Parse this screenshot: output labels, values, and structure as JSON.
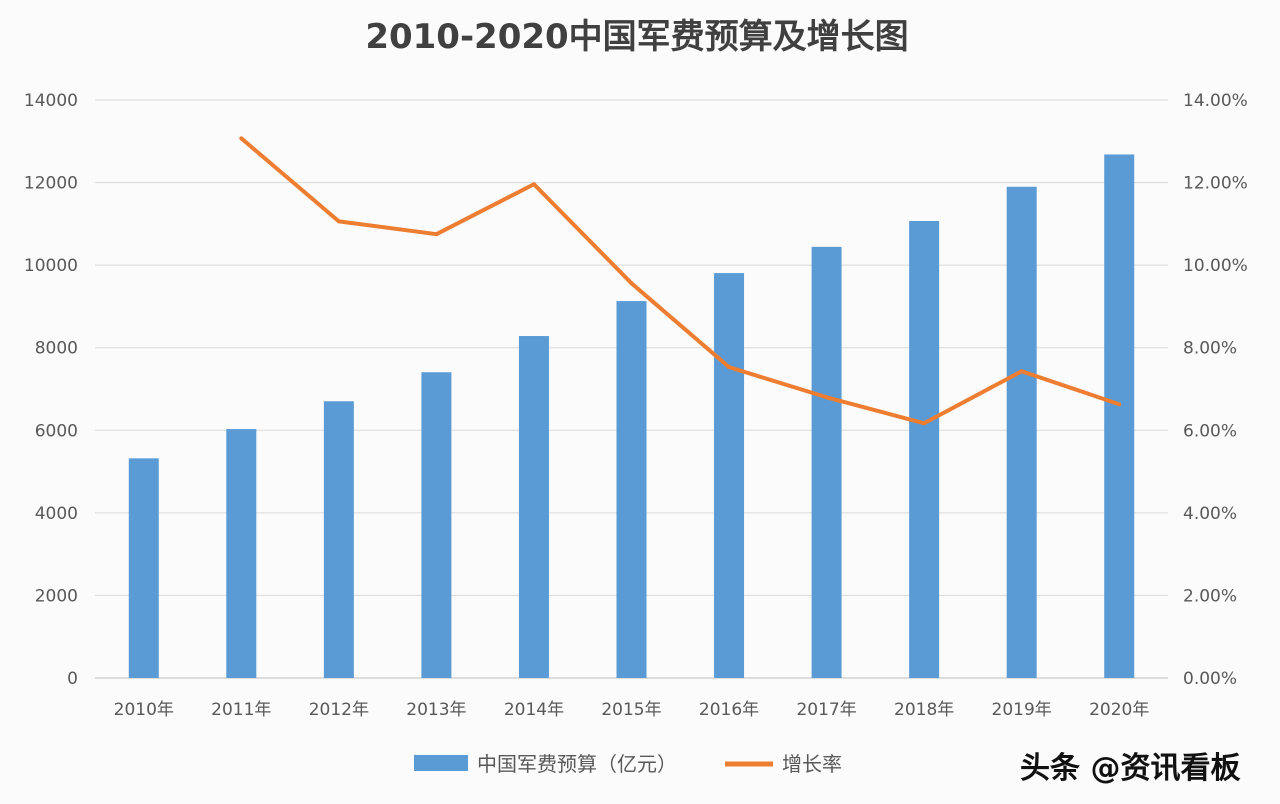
{
  "chart_data": {
    "type": "bar+line",
    "title": "2010-2020中国军费预算及增长图",
    "categories": [
      "2010年",
      "2011年",
      "2012年",
      "2013年",
      "2014年",
      "2015年",
      "2016年",
      "2017年",
      "2018年",
      "2019年",
      "2020年"
    ],
    "series": [
      {
        "name": "中国军费预算（亿元）",
        "type": "bar",
        "axis": "left",
        "color": "#5b9bd5",
        "values": [
          5321,
          6030,
          6703,
          7406,
          8283,
          9130,
          9808,
          10443,
          11070,
          11899,
          12680
        ]
      },
      {
        "name": "增长率",
        "type": "line",
        "axis": "right",
        "color": "#ed7d31",
        "values": [
          null,
          13.07,
          11.06,
          10.75,
          11.96,
          9.56,
          7.53,
          6.8,
          6.17,
          7.43,
          6.63
        ]
      }
    ],
    "left_axis": {
      "ylim": [
        0,
        14000
      ],
      "ticks": [
        "0",
        "2000",
        "4000",
        "6000",
        "8000",
        "10000",
        "12000",
        "14000"
      ]
    },
    "right_axis": {
      "ylim": [
        0,
        14
      ],
      "ticks": [
        "0.00%",
        "2.00%",
        "4.00%",
        "6.00%",
        "8.00%",
        "10.00%",
        "12.00%",
        "14.00%"
      ]
    },
    "grid": true,
    "legend": "bottom"
  },
  "watermark": "头条 @资讯看板"
}
